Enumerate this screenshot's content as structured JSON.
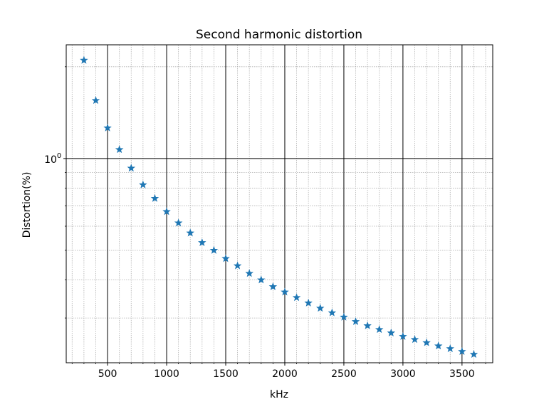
{
  "chart_data": {
    "type": "scatter",
    "title": "Second harmonic distortion",
    "xlabel": "kHz",
    "ylabel": "Distortion(%)",
    "xlim": [
      150,
      3760
    ],
    "ylim": [
      0.214,
      2.36
    ],
    "yscale": "log",
    "x_ticks": [
      500,
      1000,
      1500,
      2000,
      2500,
      3000,
      3500
    ],
    "x_tick_labels": [
      "500",
      "1000",
      "1500",
      "2000",
      "2500",
      "3000",
      "3500"
    ],
    "y_major_ticks": [
      1.0
    ],
    "y_tick_labels": [
      {
        "base": "10",
        "exp": "0"
      }
    ],
    "grid": {
      "major": "solid black",
      "minor": "dotted gray"
    },
    "legend": "none",
    "series": [
      {
        "marker": "star",
        "color": "#1f77b4",
        "points": [
          {
            "x": 300,
            "y": 2.1
          },
          {
            "x": 400,
            "y": 1.55
          },
          {
            "x": 500,
            "y": 1.26
          },
          {
            "x": 600,
            "y": 1.07
          },
          {
            "x": 700,
            "y": 0.93
          },
          {
            "x": 800,
            "y": 0.82
          },
          {
            "x": 900,
            "y": 0.74
          },
          {
            "x": 1000,
            "y": 0.67
          },
          {
            "x": 1100,
            "y": 0.615
          },
          {
            "x": 1200,
            "y": 0.57
          },
          {
            "x": 1300,
            "y": 0.53
          },
          {
            "x": 1400,
            "y": 0.5
          },
          {
            "x": 1500,
            "y": 0.47
          },
          {
            "x": 1600,
            "y": 0.445
          },
          {
            "x": 1700,
            "y": 0.42
          },
          {
            "x": 1800,
            "y": 0.4
          },
          {
            "x": 1900,
            "y": 0.38
          },
          {
            "x": 2000,
            "y": 0.365
          },
          {
            "x": 2100,
            "y": 0.35
          },
          {
            "x": 2200,
            "y": 0.336
          },
          {
            "x": 2300,
            "y": 0.323
          },
          {
            "x": 2400,
            "y": 0.312
          },
          {
            "x": 2500,
            "y": 0.302
          },
          {
            "x": 2600,
            "y": 0.292
          },
          {
            "x": 2700,
            "y": 0.283
          },
          {
            "x": 2800,
            "y": 0.275
          },
          {
            "x": 2900,
            "y": 0.268
          },
          {
            "x": 3000,
            "y": 0.261
          },
          {
            "x": 3100,
            "y": 0.255
          },
          {
            "x": 3200,
            "y": 0.249
          },
          {
            "x": 3300,
            "y": 0.243
          },
          {
            "x": 3400,
            "y": 0.238
          },
          {
            "x": 3500,
            "y": 0.233
          },
          {
            "x": 3600,
            "y": 0.228
          }
        ]
      }
    ]
  }
}
